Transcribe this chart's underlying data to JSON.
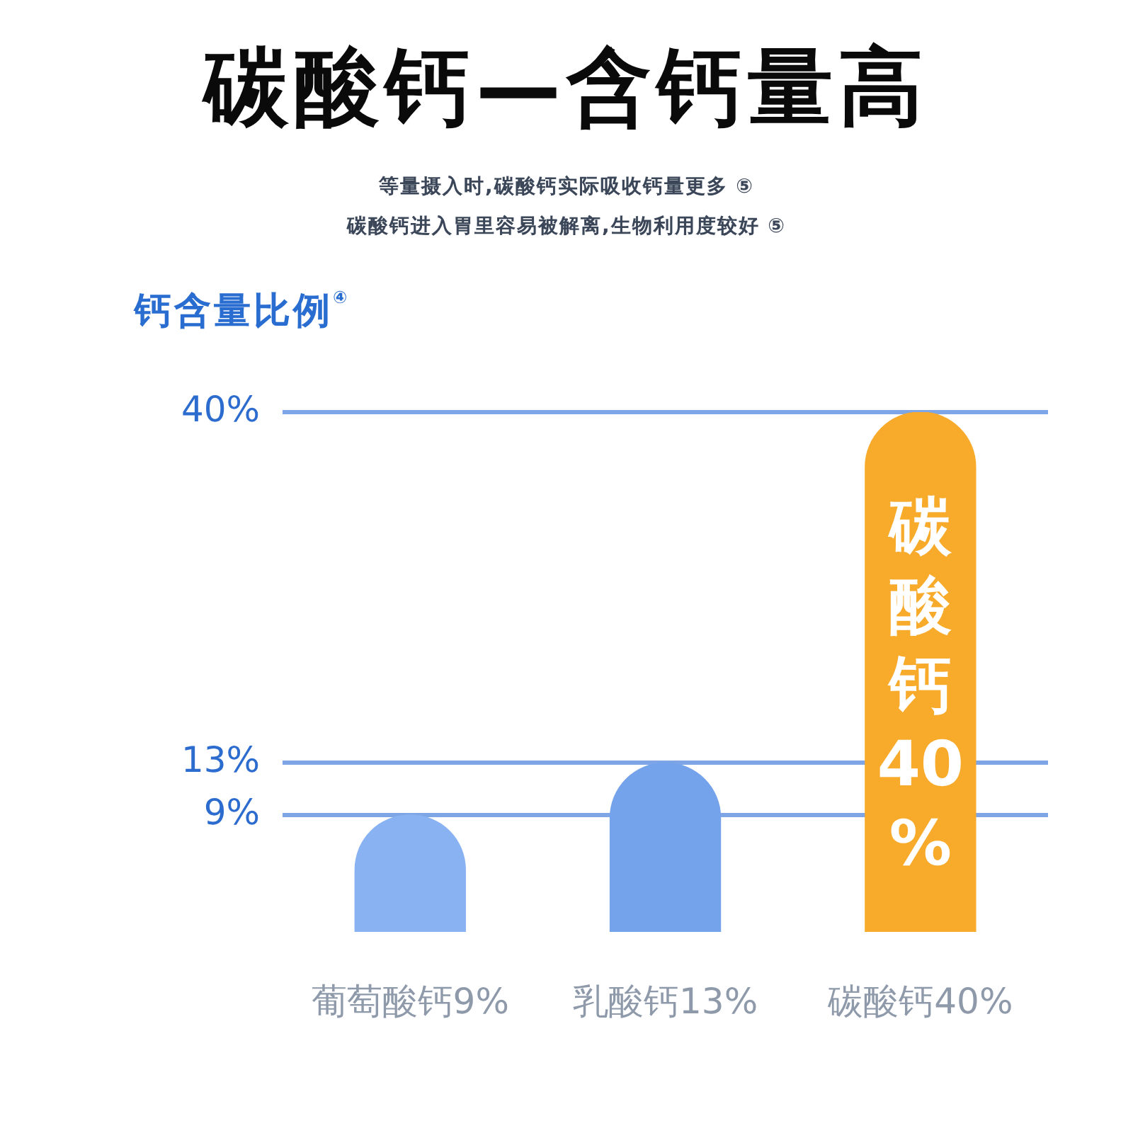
{
  "chart_data": {
    "type": "bar",
    "title": "碳酸钙—含钙量高",
    "subtitle": "等量摄入时,碳酸钙实际吸收钙量更多 ⑤\n碳酸钙进入胃里容易被解离,生物利用度较好 ⑤",
    "ylabel": "钙含量比例$^{④}$",
    "categories": [
      "葡萄酸钙9%",
      "乳酸钙13%",
      "碳酸钙40%"
    ],
    "values": [
      9,
      13,
      40
    ],
    "value_labels": [
      null,
      null,
      "碳酸钙40%"
    ],
    "colors": [
      "#88b2f2",
      "#74a3ec",
      "#f8aa2a"
    ],
    "ylim": [
      0,
      40
    ],
    "yticks": [
      {
        "value": 9,
        "label": "9%"
      },
      {
        "value": 13,
        "label": "13%"
      },
      {
        "value": 40,
        "label": "40%"
      }
    ],
    "grid": "y",
    "legend": false
  }
}
